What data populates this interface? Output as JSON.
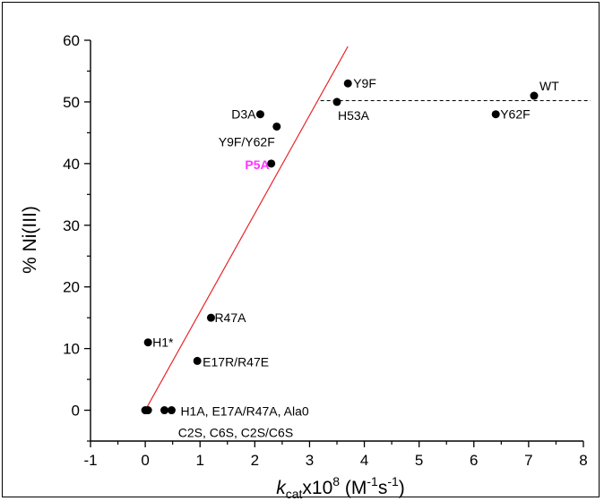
{
  "chart_data": {
    "type": "scatter",
    "title": "",
    "xlim": [
      -1,
      8
    ],
    "ylim": [
      -5,
      60
    ],
    "x_ticks": [
      "-1",
      "0",
      "1",
      "2",
      "3",
      "4",
      "5",
      "6",
      "7",
      "8"
    ],
    "y_ticks": [
      "0",
      "10",
      "20",
      "30",
      "40",
      "50",
      "60"
    ],
    "ylabel": "% Ni(III)",
    "xlabel": {
      "k": "k",
      "sub": "cat",
      "mid": "x10",
      "exp": "8",
      "open": " (M",
      "unit_exp1": "-1",
      "s": "s",
      "unit_exp2": "-1",
      "close": ")"
    },
    "points": [
      {
        "x": 7.1,
        "y": 51,
        "label": "WT"
      },
      {
        "x": 3.7,
        "y": 53,
        "label": "Y9F"
      },
      {
        "x": 3.5,
        "y": 50,
        "label": "H53A"
      },
      {
        "x": 2.1,
        "y": 48,
        "label": "D3A"
      },
      {
        "x": 6.4,
        "y": 48,
        "label": "Y62F"
      },
      {
        "x": 2.4,
        "y": 46,
        "label": "Y9F/Y62F"
      },
      {
        "x": 2.3,
        "y": 40,
        "label": "P5A",
        "highlight": true
      },
      {
        "x": 1.2,
        "y": 15,
        "label": "R47A"
      },
      {
        "x": 0.05,
        "y": 11,
        "label": "H1*"
      },
      {
        "x": 0.95,
        "y": 8,
        "label": "E17R/R47E"
      },
      {
        "x": 0.0,
        "y": 0,
        "label": ""
      },
      {
        "x": 0.05,
        "y": 0,
        "label": ""
      },
      {
        "x": 0.35,
        "y": 0,
        "label": ""
      },
      {
        "x": 0.48,
        "y": 0,
        "label": "H1A, E17A/R47A, Ala0"
      }
    ],
    "extra_labels": [
      "C2S, C6S, C2S/C6S"
    ],
    "fit_line": {
      "x": [
        0.0,
        3.7
      ],
      "y": [
        0,
        59
      ],
      "color": "#e8262a"
    },
    "reference_line": {
      "y": 50.2,
      "style": "dashed",
      "color": "#000000"
    },
    "highlight_color": "#ff33ff",
    "grid": false
  }
}
